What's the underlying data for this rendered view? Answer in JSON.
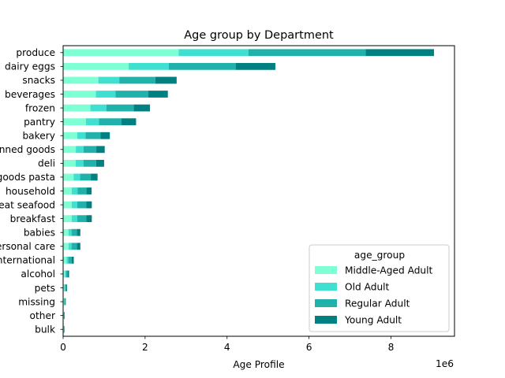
{
  "chart_data": {
    "type": "bar",
    "orientation": "horizontal",
    "stacked": true,
    "title": "Age group by Department",
    "xlabel": "Age Profile",
    "ylabel": "",
    "x_offset_label": "1e6",
    "x_scale": 1000000,
    "xlim": [
      0,
      9.55
    ],
    "xticks": [
      0,
      2,
      4,
      6,
      8
    ],
    "categories": [
      "bulk",
      "other",
      "missing",
      "pets",
      "alcohol",
      "international",
      "personal care",
      "babies",
      "breakfast",
      "meat seafood",
      "household",
      "dry goods pasta",
      "deli",
      "canned goods",
      "bakery",
      "pantry",
      "frozen",
      "beverages",
      "snacks",
      "dairy eggs",
      "produce"
    ],
    "series": [
      {
        "name": "Middle-Aged Adult",
        "color": "#7fffd4",
        "values": [
          0.011,
          0.012,
          0.02,
          0.03,
          0.045,
          0.082,
          0.13,
          0.13,
          0.21,
          0.21,
          0.21,
          0.255,
          0.305,
          0.31,
          0.345,
          0.555,
          0.665,
          0.8,
          0.86,
          1.6,
          2.82
        ]
      },
      {
        "name": "Old Adult",
        "color": "#40e0d0",
        "values": [
          0.005,
          0.006,
          0.011,
          0.015,
          0.025,
          0.045,
          0.075,
          0.075,
          0.135,
          0.135,
          0.14,
          0.16,
          0.19,
          0.19,
          0.2,
          0.32,
          0.39,
          0.48,
          0.51,
          0.98,
          1.7
        ]
      },
      {
        "name": "Regular Adult",
        "color": "#20b2aa",
        "values": [
          0.01,
          0.011,
          0.02,
          0.03,
          0.045,
          0.08,
          0.13,
          0.13,
          0.22,
          0.22,
          0.22,
          0.26,
          0.31,
          0.31,
          0.37,
          0.55,
          0.67,
          0.8,
          0.88,
          1.63,
          2.86
        ]
      },
      {
        "name": "Young Adult",
        "color": "#008080",
        "values": [
          0.008,
          0.008,
          0.014,
          0.02,
          0.03,
          0.053,
          0.085,
          0.085,
          0.135,
          0.135,
          0.125,
          0.165,
          0.195,
          0.205,
          0.225,
          0.355,
          0.395,
          0.475,
          0.52,
          0.97,
          1.67
        ]
      }
    ],
    "legend": {
      "title": "age_group",
      "position": "lower-right"
    },
    "grid": false
  }
}
